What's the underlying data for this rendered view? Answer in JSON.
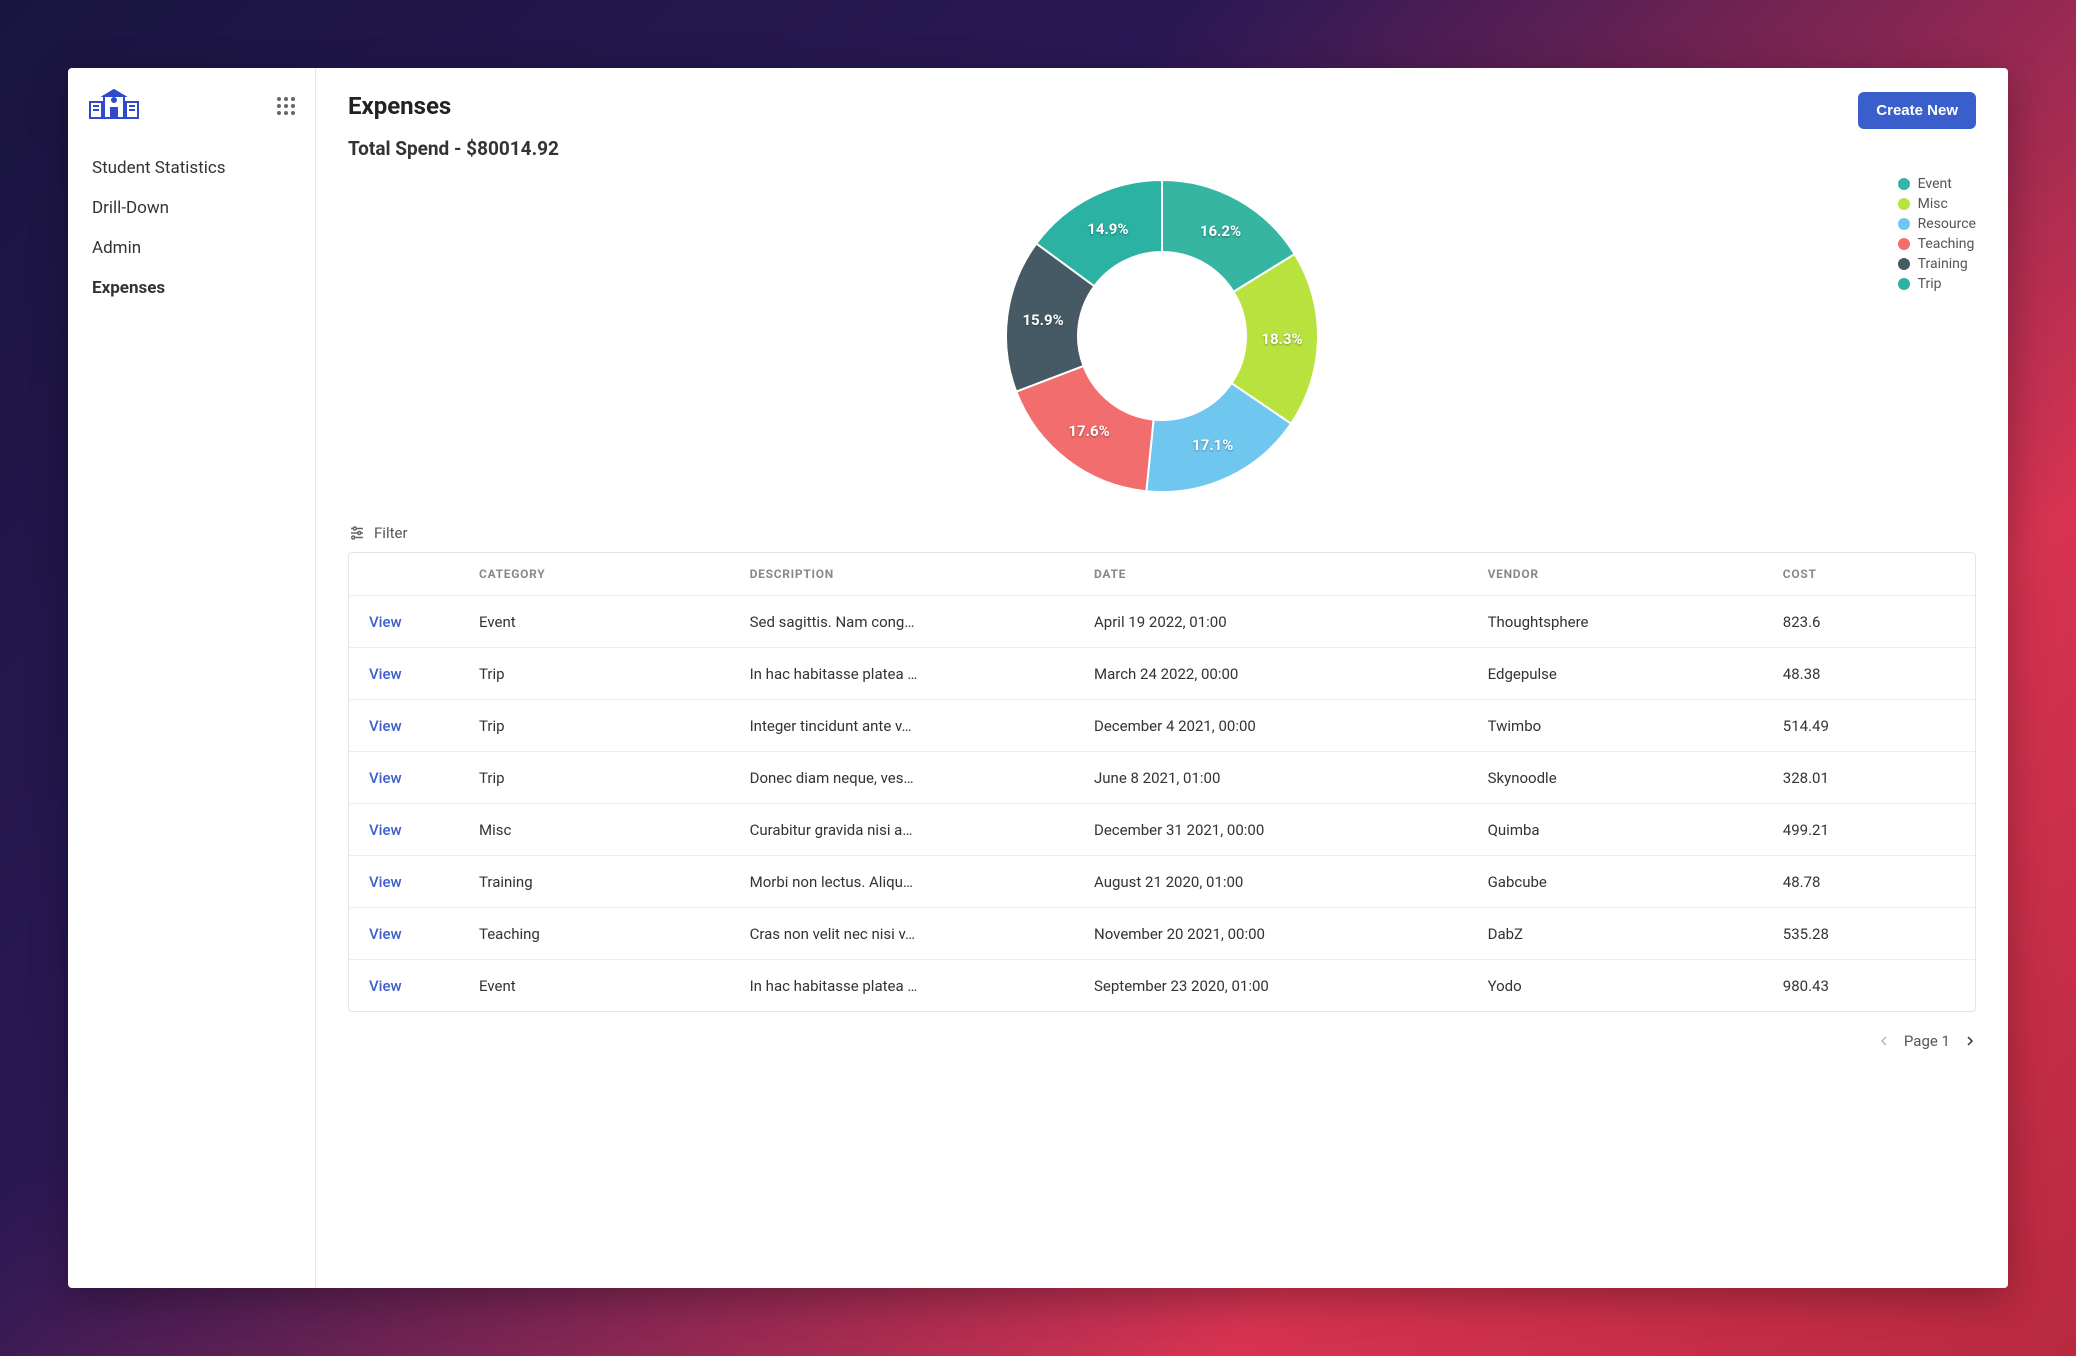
{
  "sidebar": {
    "items": [
      {
        "label": "Student Statistics",
        "active": false
      },
      {
        "label": "Drill-Down",
        "active": false
      },
      {
        "label": "Admin",
        "active": false
      },
      {
        "label": "Expenses",
        "active": true
      }
    ]
  },
  "header": {
    "title": "Expenses",
    "create_label": "Create New",
    "subtitle": "Total Spend - $80014.92"
  },
  "chart": {
    "type": "donut",
    "outer_radius": 156,
    "inner_radius": 84,
    "background": "#ffffff",
    "label_color": "#ffffff",
    "label_fontsize": 15,
    "start_angle": -90,
    "slices": [
      {
        "name": "Event",
        "pct": 16.2,
        "color": "#36b5a3"
      },
      {
        "name": "Misc",
        "pct": 18.3,
        "color": "#b8e33f"
      },
      {
        "name": "Resource",
        "pct": 17.1,
        "color": "#6fc6ee"
      },
      {
        "name": "Teaching",
        "pct": 17.6,
        "color": "#f26d6d"
      },
      {
        "name": "Training",
        "pct": 15.9,
        "color": "#455a64"
      },
      {
        "name": "Trip",
        "pct": 14.9,
        "color": "#2bb2a3"
      }
    ],
    "legend": [
      {
        "label": "Event",
        "color": "#36b5a3"
      },
      {
        "label": "Misc",
        "color": "#b8e33f"
      },
      {
        "label": "Resource",
        "color": "#6fc6ee"
      },
      {
        "label": "Teaching",
        "color": "#f26d6d"
      },
      {
        "label": "Training",
        "color": "#455a64"
      },
      {
        "label": "Trip",
        "color": "#2bb2a3"
      }
    ]
  },
  "filter_label": "Filter",
  "table": {
    "view_label": "View",
    "columns": [
      "CATEGORY",
      "DESCRIPTION",
      "DATE",
      "VENDOR",
      "COST"
    ],
    "rows": [
      {
        "category": "Event",
        "description": "Sed sagittis. Nam cong…",
        "date": "April 19 2022, 01:00",
        "vendor": "Thoughtsphere",
        "cost": "823.6"
      },
      {
        "category": "Trip",
        "description": "In hac habitasse platea …",
        "date": "March 24 2022, 00:00",
        "vendor": "Edgepulse",
        "cost": "48.38"
      },
      {
        "category": "Trip",
        "description": "Integer tincidunt ante v…",
        "date": "December 4 2021, 00:00",
        "vendor": "Twimbo",
        "cost": "514.49"
      },
      {
        "category": "Trip",
        "description": "Donec diam neque, ves…",
        "date": "June 8 2021, 01:00",
        "vendor": "Skynoodle",
        "cost": "328.01"
      },
      {
        "category": "Misc",
        "description": "Curabitur gravida nisi a…",
        "date": "December 31 2021, 00:00",
        "vendor": "Quimba",
        "cost": "499.21"
      },
      {
        "category": "Training",
        "description": "Morbi non lectus. Aliqu…",
        "date": "August 21 2020, 01:00",
        "vendor": "Gabcube",
        "cost": "48.78"
      },
      {
        "category": "Teaching",
        "description": "Cras non velit nec nisi v…",
        "date": "November 20 2021, 00:00",
        "vendor": "DabZ",
        "cost": "535.28"
      },
      {
        "category": "Event",
        "description": "In hac habitasse platea …",
        "date": "September 23 2020, 01:00",
        "vendor": "Yodo",
        "cost": "980.43"
      }
    ]
  },
  "pager": {
    "label": "Page 1"
  }
}
